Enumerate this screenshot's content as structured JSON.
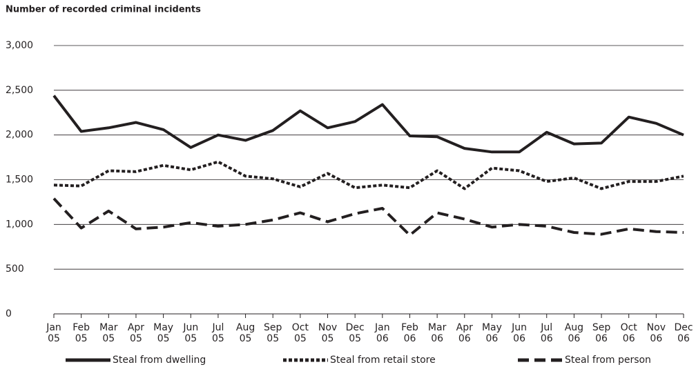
{
  "chart_data": {
    "type": "line",
    "title": "Number of recorded criminal incidents",
    "categories": [
      "Jan 05",
      "Feb 05",
      "Mar 05",
      "Apr 05",
      "May 05",
      "Jun 05",
      "Jul 05",
      "Aug 05",
      "Sep 05",
      "Oct 05",
      "Nov 05",
      "Dec 05",
      "Jan 06",
      "Feb 06",
      "Mar 06",
      "Apr 06",
      "May 06",
      "Jun 06",
      "Jul 06",
      "Aug 06",
      "Sep 06",
      "Oct 06",
      "Nov 06",
      "Dec 06"
    ],
    "series": [
      {
        "name": "Steal from dwelling",
        "color": "#231f20",
        "dash": "none",
        "values": [
          2440,
          2040,
          2080,
          2140,
          2060,
          1860,
          2000,
          1940,
          2050,
          2270,
          2080,
          2150,
          2340,
          1990,
          1980,
          1850,
          1810,
          1810,
          2030,
          1900,
          1910,
          2200,
          2130,
          2000
        ]
      },
      {
        "name": "Steal from retail store",
        "color": "#231f20",
        "dash": "5,3",
        "values": [
          1440,
          1430,
          1600,
          1590,
          1660,
          1610,
          1700,
          1540,
          1510,
          1420,
          1570,
          1410,
          1440,
          1410,
          1600,
          1400,
          1630,
          1600,
          1480,
          1520,
          1400,
          1480,
          1480,
          1540
        ]
      },
      {
        "name": "Steal from person",
        "color": "#231f20",
        "dash": "16,8",
        "values": [
          1290,
          960,
          1150,
          950,
          970,
          1020,
          980,
          1000,
          1050,
          1130,
          1030,
          1120,
          1180,
          880,
          1130,
          1060,
          970,
          1000,
          980,
          910,
          890,
          950,
          920,
          910
        ]
      }
    ],
    "ylim": [
      0,
      3000
    ],
    "yticks": [
      0,
      500,
      {
        "value": 1000,
        "label": "1,000"
      },
      {
        "value": 1500,
        "label": "1,500"
      },
      {
        "value": 2000,
        "label": "2,000"
      },
      {
        "value": 2500,
        "label": "2,500"
      },
      {
        "value": 3000,
        "label": "3,000"
      }
    ],
    "grid": true
  }
}
